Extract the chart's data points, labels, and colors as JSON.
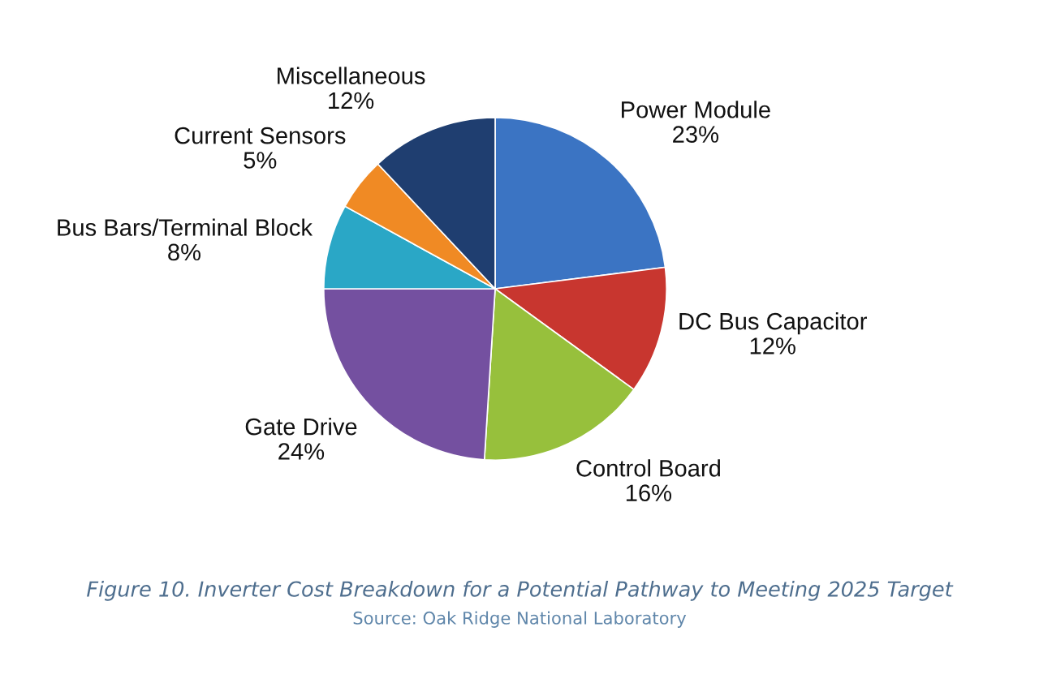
{
  "chart_data": {
    "type": "pie",
    "categories": [
      "Power Module",
      "DC Bus Capacitor",
      "Control Board",
      "Gate Drive",
      "Bus Bars/Terminal Block",
      "Current Sensors",
      "Miscellaneous"
    ],
    "values": [
      23,
      12,
      16,
      24,
      8,
      5,
      12
    ],
    "value_labels": [
      "23%",
      "12%",
      "16%",
      "24%",
      "8%",
      "5%",
      "12%"
    ],
    "colors": [
      "#3b74c3",
      "#c8362f",
      "#97c03c",
      "#7450a0",
      "#2aa7c6",
      "#f08a24",
      "#1f3e70"
    ],
    "annotations": [
      "Figure 10. Inverter Cost Breakdown for a Potential Pathway to Meeting 2025 Target",
      "Source: Oak Ridge National Laboratory"
    ]
  }
}
